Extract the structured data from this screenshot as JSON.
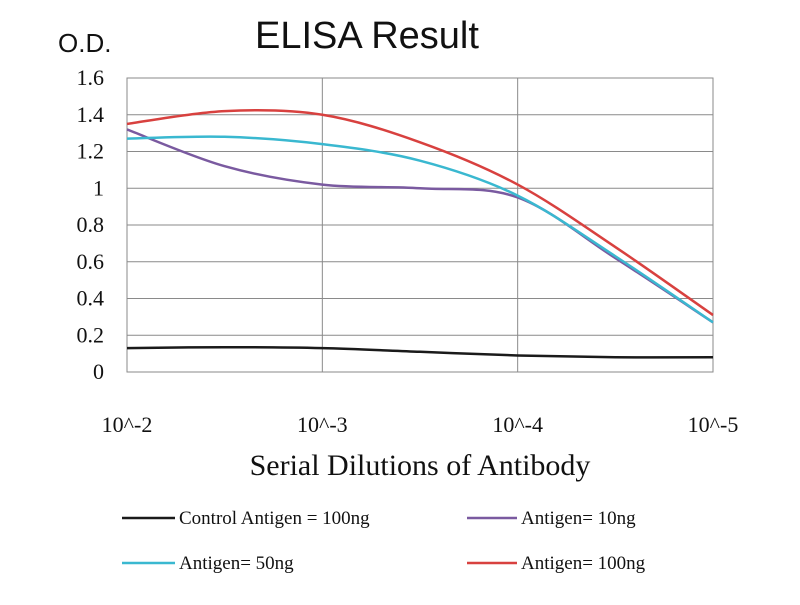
{
  "chart_data": {
    "type": "line",
    "title": "ELISA Result",
    "ylabel": "O.D.",
    "xlabel": "Serial Dilutions of Antibody",
    "categories": [
      "10^-2",
      "10^-3",
      "10^-4",
      "10^-5"
    ],
    "ylim": [
      0,
      1.6
    ],
    "yticks": [
      "1.6",
      "1.4",
      "1.2",
      "1",
      "0.8",
      "0.6",
      "0.4",
      "0.2",
      "0"
    ],
    "grid": true,
    "legend_position": "bottom",
    "series": [
      {
        "name": "Control Antigen = 100ng",
        "color": "#1a1a1a",
        "x": [
          0,
          0.5,
          1,
          1.5,
          2,
          2.5,
          3
        ],
        "values": [
          0.13,
          0.135,
          0.13,
          0.11,
          0.09,
          0.08,
          0.08
        ]
      },
      {
        "name": "Antigen= 10ng",
        "color": "#7a5aa0",
        "x": [
          0,
          0.5,
          1,
          1.5,
          2,
          2.5,
          3
        ],
        "values": [
          1.32,
          1.12,
          1.02,
          1.0,
          0.95,
          0.62,
          0.27
        ]
      },
      {
        "name": "Antigen= 50ng",
        "color": "#3ab8d0",
        "x": [
          0,
          0.5,
          1,
          1.5,
          2,
          2.5,
          3
        ],
        "values": [
          1.27,
          1.28,
          1.24,
          1.15,
          0.96,
          0.63,
          0.27
        ]
      },
      {
        "name": "Antigen= 100ng",
        "color": "#d8413f",
        "x": [
          0,
          0.5,
          1,
          1.5,
          2,
          2.5,
          3
        ],
        "values": [
          1.35,
          1.42,
          1.4,
          1.25,
          1.02,
          0.68,
          0.31
        ]
      }
    ]
  }
}
